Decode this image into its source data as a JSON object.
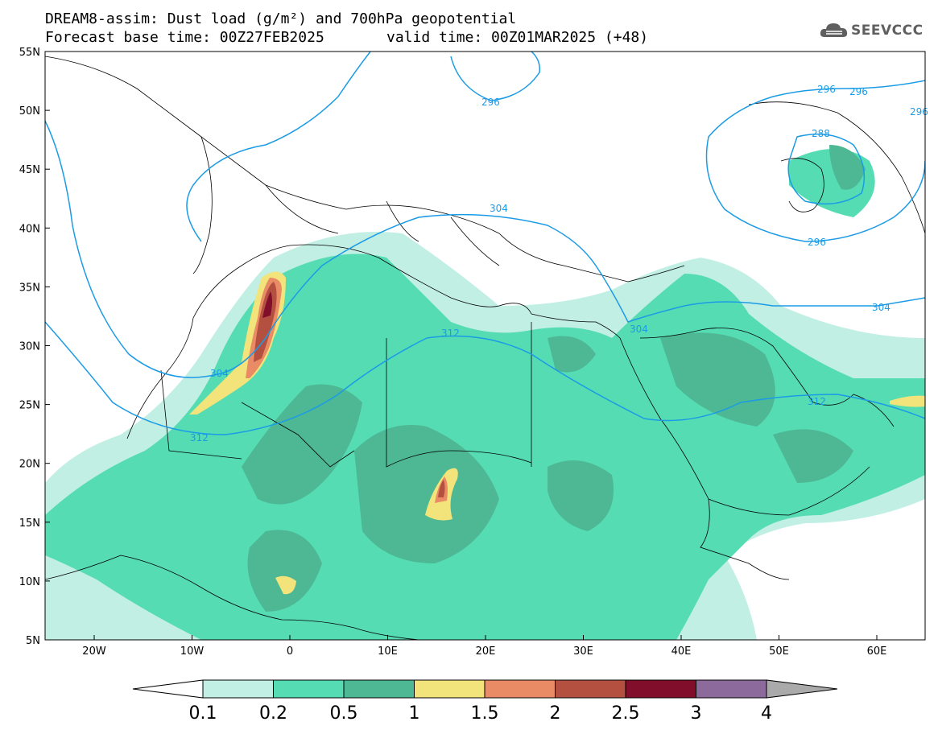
{
  "header": {
    "title_line1": "DREAM8-assim: Dust load (g/m²) and 700hPa geopotential",
    "base_time": "Forecast base time: 00Z27FEB2025",
    "valid_time": "valid time: 00Z01MAR2025 (+48)"
  },
  "logo": {
    "text": "SEEVCCC",
    "icon": "cloud-icon"
  },
  "axes": {
    "lat_labels": [
      "55N",
      "50N",
      "45N",
      "40N",
      "35N",
      "30N",
      "25N",
      "20N",
      "15N",
      "10N",
      "5N"
    ],
    "lon_labels": [
      "20W",
      "10W",
      "0",
      "10E",
      "20E",
      "30E",
      "40E",
      "50E",
      "60E"
    ]
  },
  "contours": {
    "labels": [
      "296",
      "296",
      "296",
      "296",
      "296",
      "288",
      "304",
      "304",
      "304",
      "304",
      "312",
      "312",
      "312"
    ]
  },
  "colorbar": {
    "levels": [
      "0.1",
      "0.2",
      "0.5",
      "1",
      "1.5",
      "2",
      "2.5",
      "3",
      "4"
    ],
    "colors": [
      "#c1efe4",
      "#55dcb3",
      "#4db893",
      "#f2e47a",
      "#e98c66",
      "#b3503f",
      "#810e2a",
      "#8d6a9c",
      "#aaaaaa"
    ]
  },
  "map_colors": {
    "contour": "#1b9be6",
    "coast": "#000000",
    "level1": "#c1efe4",
    "level2": "#55dcb3",
    "level3": "#4db893",
    "level4": "#f2e47a",
    "level5": "#e98c66",
    "level6": "#b3503f",
    "level7": "#810e2a"
  }
}
